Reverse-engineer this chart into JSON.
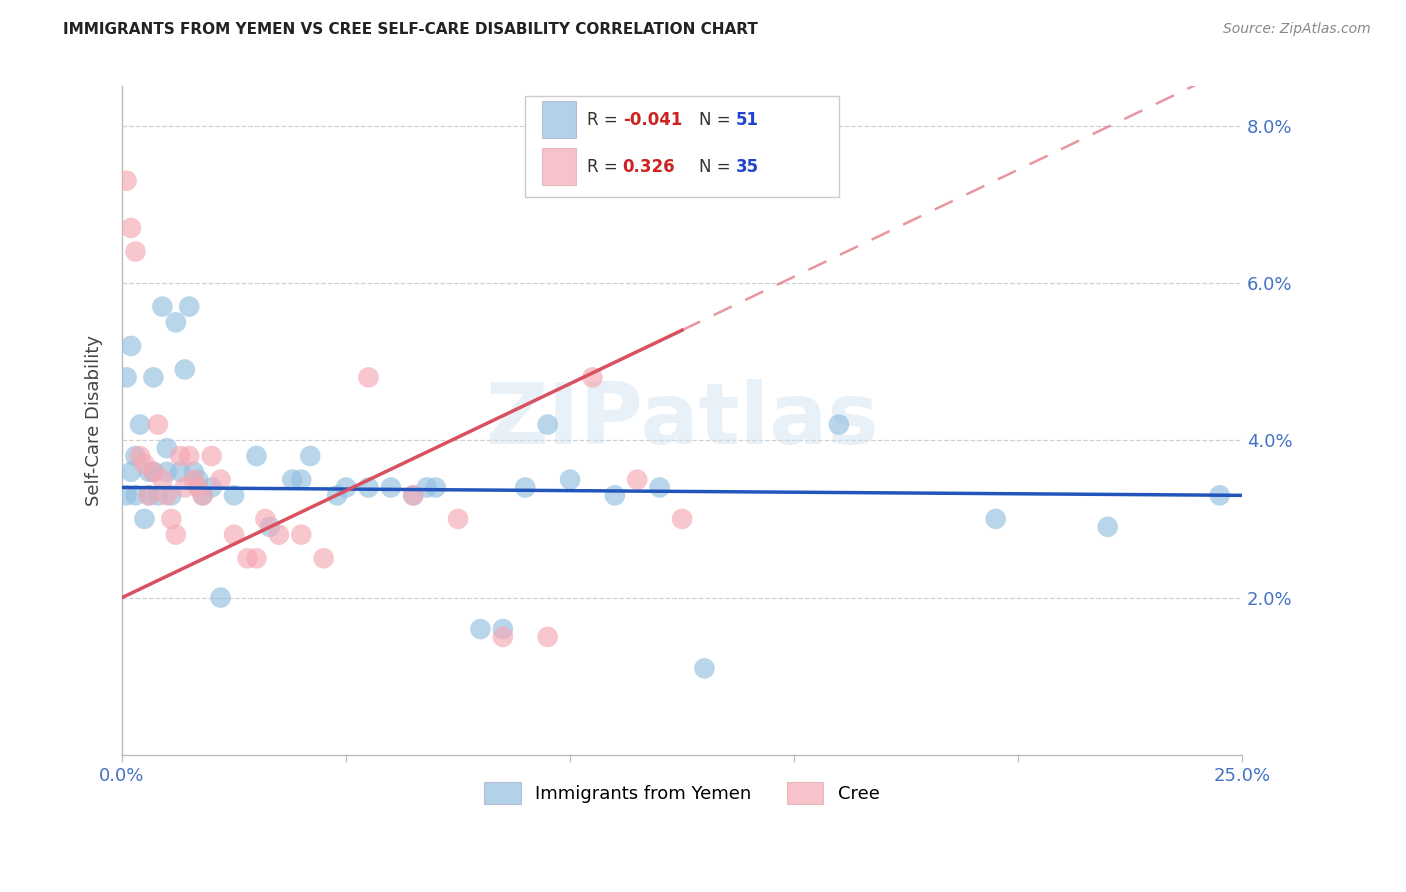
{
  "title": "IMMIGRANTS FROM YEMEN VS CREE SELF-CARE DISABILITY CORRELATION CHART",
  "source": "Source: ZipAtlas.com",
  "ylabel": "Self-Care Disability",
  "xlim": [
    0.0,
    0.25
  ],
  "ylim": [
    0.0,
    0.085
  ],
  "xtick_positions": [
    0.0,
    0.05,
    0.1,
    0.15,
    0.2,
    0.25
  ],
  "xticklabels": [
    "0.0%",
    "",
    "",
    "",
    "",
    "25.0%"
  ],
  "ytick_positions": [
    0.02,
    0.04,
    0.06,
    0.08
  ],
  "yticklabels": [
    "2.0%",
    "4.0%",
    "6.0%",
    "8.0%"
  ],
  "blue_color": "#92bfdf",
  "pink_color": "#f5a8b3",
  "blue_line_color": "#2255bb",
  "pink_line_color": "#d95060",
  "watermark": "ZIPatlas",
  "blue_x": [
    0.001,
    0.001,
    0.002,
    0.002,
    0.003,
    0.003,
    0.004,
    0.005,
    0.006,
    0.006,
    0.007,
    0.007,
    0.008,
    0.009,
    0.01,
    0.01,
    0.011,
    0.012,
    0.013,
    0.014,
    0.015,
    0.016,
    0.017,
    0.018,
    0.02,
    0.022,
    0.025,
    0.03,
    0.033,
    0.038,
    0.042,
    0.048,
    0.055,
    0.06,
    0.065,
    0.068,
    0.08,
    0.085,
    0.095,
    0.1,
    0.11,
    0.13,
    0.16,
    0.195,
    0.22,
    0.245,
    0.04,
    0.05,
    0.07,
    0.09,
    0.12
  ],
  "blue_y": [
    0.033,
    0.048,
    0.052,
    0.036,
    0.038,
    0.033,
    0.042,
    0.03,
    0.036,
    0.033,
    0.048,
    0.036,
    0.033,
    0.057,
    0.036,
    0.039,
    0.033,
    0.055,
    0.036,
    0.049,
    0.057,
    0.036,
    0.035,
    0.033,
    0.034,
    0.02,
    0.033,
    0.038,
    0.029,
    0.035,
    0.038,
    0.033,
    0.034,
    0.034,
    0.033,
    0.034,
    0.016,
    0.016,
    0.042,
    0.035,
    0.033,
    0.011,
    0.042,
    0.03,
    0.029,
    0.033,
    0.035,
    0.034,
    0.034,
    0.034,
    0.034
  ],
  "pink_x": [
    0.001,
    0.002,
    0.003,
    0.004,
    0.005,
    0.006,
    0.007,
    0.008,
    0.009,
    0.01,
    0.011,
    0.012,
    0.013,
    0.014,
    0.015,
    0.016,
    0.017,
    0.018,
    0.02,
    0.022,
    0.025,
    0.028,
    0.03,
    0.032,
    0.035,
    0.04,
    0.045,
    0.055,
    0.065,
    0.075,
    0.085,
    0.095,
    0.105,
    0.115,
    0.125
  ],
  "pink_y": [
    0.073,
    0.067,
    0.064,
    0.038,
    0.037,
    0.033,
    0.036,
    0.042,
    0.035,
    0.033,
    0.03,
    0.028,
    0.038,
    0.034,
    0.038,
    0.035,
    0.034,
    0.033,
    0.038,
    0.035,
    0.028,
    0.025,
    0.025,
    0.03,
    0.028,
    0.028,
    0.025,
    0.048,
    0.033,
    0.03,
    0.015,
    0.015,
    0.048,
    0.035,
    0.03
  ],
  "blue_line_start_x": 0.0,
  "blue_line_start_y": 0.034,
  "blue_line_end_x": 0.25,
  "blue_line_end_y": 0.033,
  "pink_line_start_x": 0.0,
  "pink_line_start_y": 0.02,
  "pink_line_solid_end_x": 0.125,
  "pink_line_solid_end_y": 0.054,
  "pink_line_dash_end_x": 0.25,
  "pink_line_dash_end_y": 0.088
}
